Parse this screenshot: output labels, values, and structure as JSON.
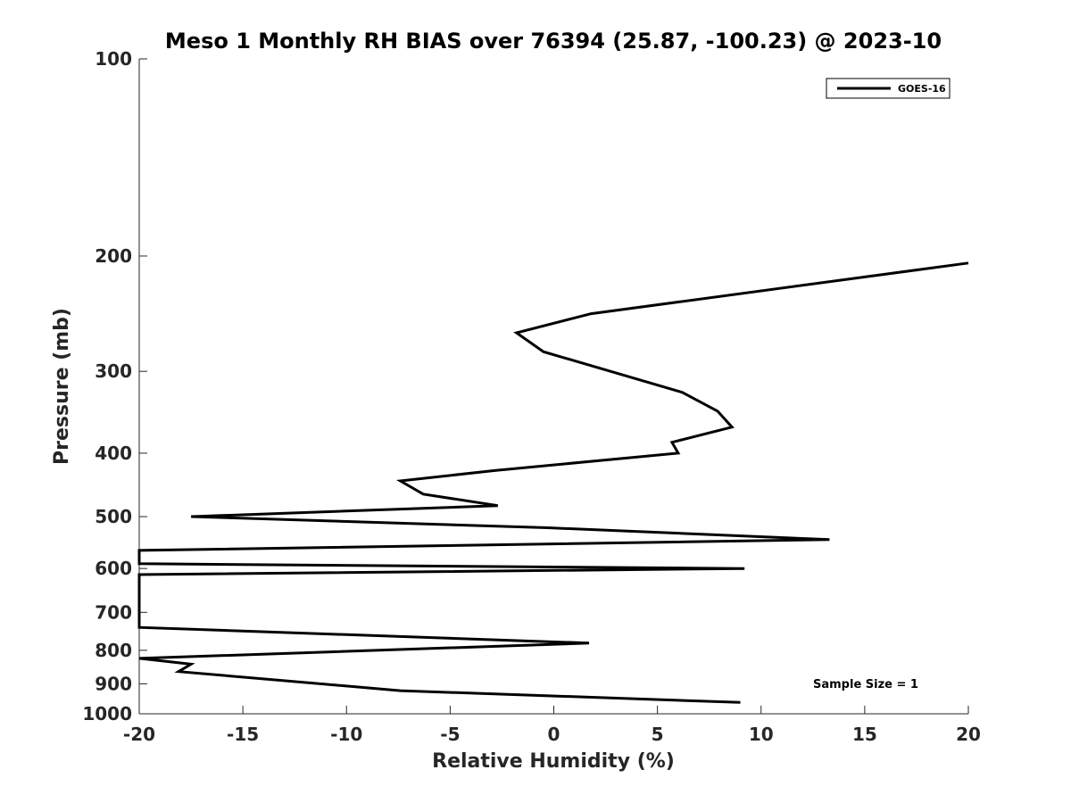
{
  "chart_data": {
    "type": "line",
    "title": "Meso 1 Monthly RH BIAS over 76394 (25.87, -100.23) @ 2023-10",
    "xlabel": "Relative Humidity (%)",
    "ylabel": "Pressure (mb)",
    "xlim": [
      -20,
      20
    ],
    "ylim": [
      1000,
      100
    ],
    "y_scale": "log",
    "y_reversed": true,
    "x_ticks": [
      -20,
      -15,
      -10,
      -5,
      0,
      5,
      10,
      15,
      20
    ],
    "y_ticks": [
      100,
      200,
      300,
      400,
      500,
      600,
      700,
      800,
      900,
      1000
    ],
    "grid": false,
    "legend_position": "top-right",
    "series": [
      {
        "name": "GOES-16",
        "color": "#000000",
        "x": [
          20.0,
          1.8,
          -1.8,
          -0.5,
          6.2,
          7.9,
          8.6,
          5.7,
          6.0,
          -2.8,
          -7.4,
          -6.3,
          -2.7,
          -17.5,
          -0.3,
          13.3,
          -20.0,
          -20.0,
          9.2,
          -20.0,
          -20.0,
          1.7,
          -20.0,
          -17.5,
          -18.1,
          -7.4,
          9.0
        ],
        "y": [
          205,
          245,
          262,
          280,
          323,
          345,
          365,
          385,
          400,
          425,
          441,
          462,
          481,
          500,
          520,
          542,
          563,
          590,
          600,
          613,
          738,
          780,
          823,
          840,
          862,
          922,
          961
        ]
      }
    ],
    "annotations": [
      "Sample Size = 1"
    ]
  }
}
